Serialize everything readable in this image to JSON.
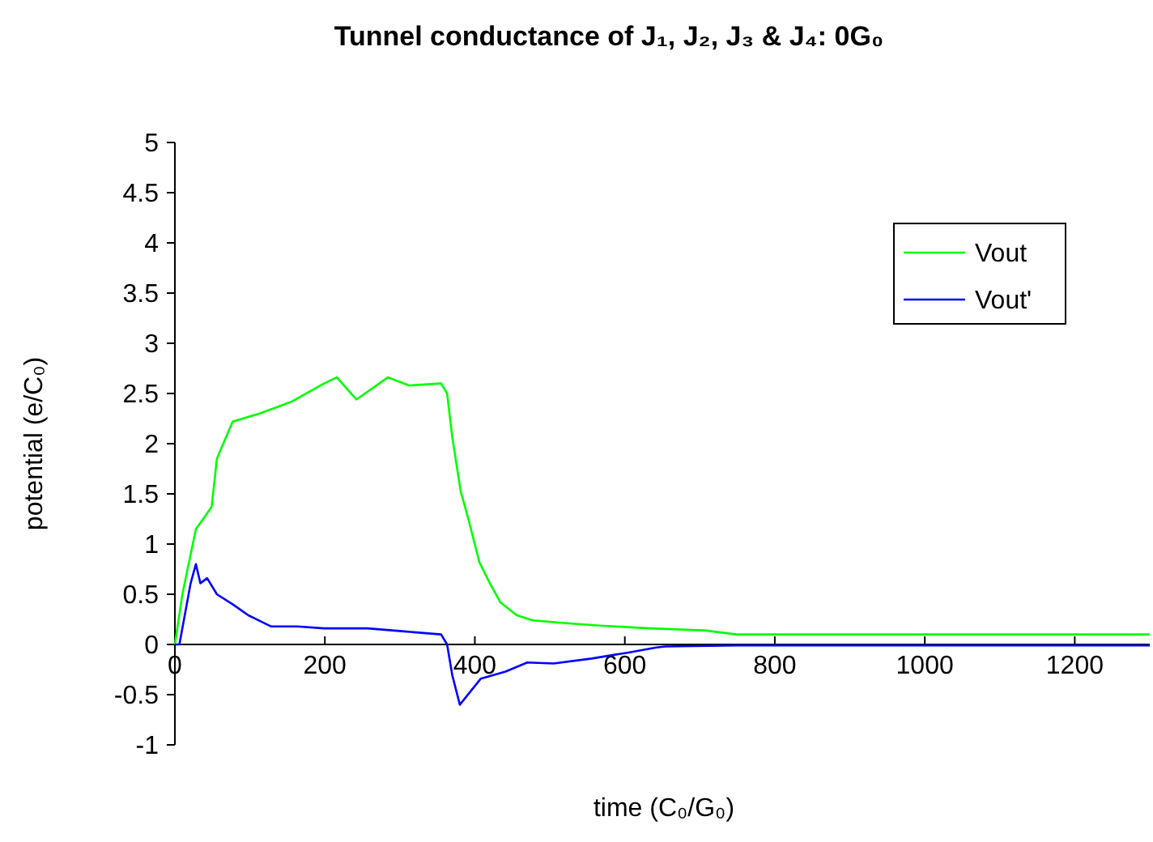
{
  "chart_data": {
    "type": "line",
    "title": "Tunnel conductance of J₁, J₂, J₃ & J₄: 0G₀",
    "xlabel": "time (C₀/G₀)",
    "ylabel": "potential (e/C₀)",
    "xlim": [
      0,
      1300
    ],
    "xticks": [
      0,
      200,
      400,
      600,
      800,
      1000,
      1200
    ],
    "ylim": [
      -1,
      5
    ],
    "yticks": [
      -1,
      -0.5,
      0,
      0.5,
      1,
      1.5,
      2,
      2.5,
      3,
      3.5,
      4,
      4.5,
      5
    ],
    "grid": false,
    "legend": "top right",
    "line_style": "solid",
    "series": [
      {
        "name": "Vout",
        "color": "#00ff00",
        "x": [
          0,
          10,
          23,
          28,
          49,
          56,
          77,
          113,
          156,
          199,
          216,
          242,
          284,
          312,
          355,
          363,
          370,
          381,
          391,
          406,
          420,
          434,
          456,
          477,
          526,
          563,
          633,
          706,
          749,
          800,
          1000,
          1300
        ],
        "values": [
          0,
          0.5,
          0.97,
          1.15,
          1.37,
          1.85,
          2.22,
          2.3,
          2.42,
          2.6,
          2.66,
          2.44,
          2.66,
          2.58,
          2.6,
          2.5,
          2.06,
          1.53,
          1.26,
          0.82,
          0.61,
          0.42,
          0.29,
          0.24,
          0.21,
          0.19,
          0.16,
          0.14,
          0.1,
          0.1,
          0.1,
          0.1
        ]
      },
      {
        "name": "Vout'",
        "color": "#0000ff",
        "x": [
          0,
          6,
          21,
          28,
          34,
          43,
          56,
          77,
          98,
          128,
          163,
          199,
          257,
          306,
          355,
          363,
          370,
          380,
          408,
          441,
          470,
          505,
          556,
          605,
          642,
          654,
          750,
          1000,
          1300
        ],
        "values": [
          0,
          0,
          0.61,
          0.8,
          0.61,
          0.66,
          0.5,
          0.4,
          0.29,
          0.18,
          0.18,
          0.16,
          0.16,
          0.13,
          0.1,
          0,
          -0.31,
          -0.6,
          -0.34,
          -0.27,
          -0.18,
          -0.19,
          -0.14,
          -0.08,
          -0.03,
          -0.02,
          -0.01,
          -0.01,
          -0.01
        ]
      }
    ]
  }
}
